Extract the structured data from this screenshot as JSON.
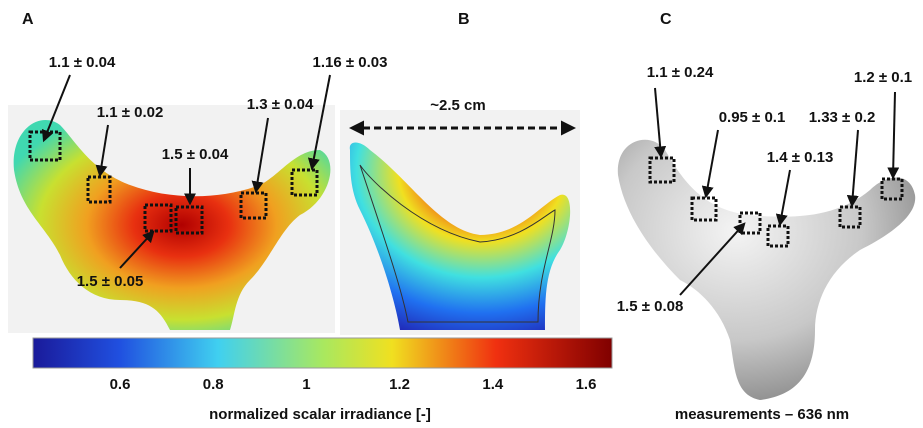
{
  "panels": [
    {
      "label": "A",
      "annotations": [
        "1.1 ± 0.04",
        "1.1 ± 0.02",
        "1.5 ± 0.04",
        "1.3 ± 0.04",
        "1.16 ± 0.03",
        "1.5 ± 0.05"
      ]
    },
    {
      "label": "B",
      "scale_label": "~2.5 cm"
    },
    {
      "label": "C",
      "annotations": [
        "1.1 ± 0.24",
        "0.95 ± 0.1",
        "1.4 ± 0.13",
        "1.33 ± 0.2",
        "1.2 ± 0.1",
        "1.5 ± 0.08"
      ],
      "caption": "measurements – 636 nm"
    }
  ],
  "colorbar": {
    "ticks": [
      0.6,
      0.8,
      1,
      1.2,
      1.4,
      1.6
    ],
    "label": "normalized scalar irradiance [-]"
  }
}
